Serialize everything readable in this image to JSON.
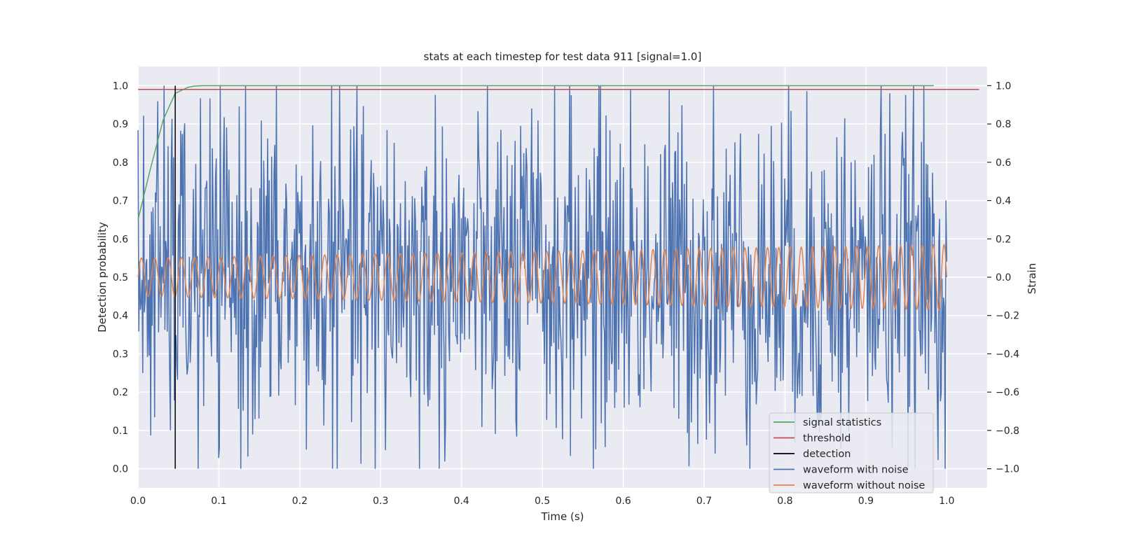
{
  "chart_data": {
    "type": "line",
    "title": "stats at each timestep for test data 911 [signal=1.0]",
    "xlabel": "Time (s)",
    "ylabel": "Detection probability",
    "y2label": "Strain",
    "xlim": [
      0.0,
      1.05
    ],
    "ylim": [
      -0.05,
      1.05
    ],
    "y2lim": [
      -1.1,
      1.1
    ],
    "x_ticks": [
      "0.0",
      "0.1",
      "0.2",
      "0.3",
      "0.4",
      "0.5",
      "0.6",
      "0.7",
      "0.8",
      "0.9",
      "1.0"
    ],
    "y_ticks": [
      "0.0",
      "0.1",
      "0.2",
      "0.3",
      "0.4",
      "0.5",
      "0.6",
      "0.7",
      "0.8",
      "0.9",
      "1.0"
    ],
    "y2_ticks": [
      "−1.0",
      "−0.8",
      "−0.6",
      "−0.4",
      "−0.2",
      "0.0",
      "0.2",
      "0.4",
      "0.6",
      "0.8",
      "1.0"
    ],
    "grid": true,
    "legend_position": "bottom-right",
    "series": [
      {
        "name": "signal statistics",
        "axis": "left",
        "color": "#55a868",
        "x": [
          0.0,
          0.015,
          0.031,
          0.046,
          0.062,
          0.07,
          0.08,
          0.2,
          0.4,
          0.6,
          0.8,
          0.984
        ],
        "y": [
          0.65,
          0.78,
          0.91,
          0.98,
          0.996,
          0.999,
          1.0,
          1.0,
          1.0,
          1.0,
          1.0,
          1.0
        ]
      },
      {
        "name": "threshold",
        "axis": "left",
        "color": "#c44e52",
        "x": [
          0.0,
          1.04
        ],
        "y": [
          0.99,
          0.99
        ]
      },
      {
        "name": "detection",
        "axis": "left",
        "color": "#000000",
        "x": [
          0.046,
          0.046
        ],
        "y": [
          0.0,
          1.0
        ]
      },
      {
        "name": "waveform with noise",
        "axis": "right",
        "color": "#4c72b0",
        "x_start": 0.0,
        "x_end": 1.0,
        "amplitude": 0.45,
        "y_extremes": [
          -1.0,
          1.0
        ]
      },
      {
        "name": "waveform without noise",
        "axis": "right",
        "color": "#dd8452",
        "x_start": 0.0,
        "x_end": 1.0,
        "amplitude_start": 0.1,
        "amplitude_end": 0.17,
        "frequency_start": 60,
        "frequency_end": 75
      }
    ]
  }
}
